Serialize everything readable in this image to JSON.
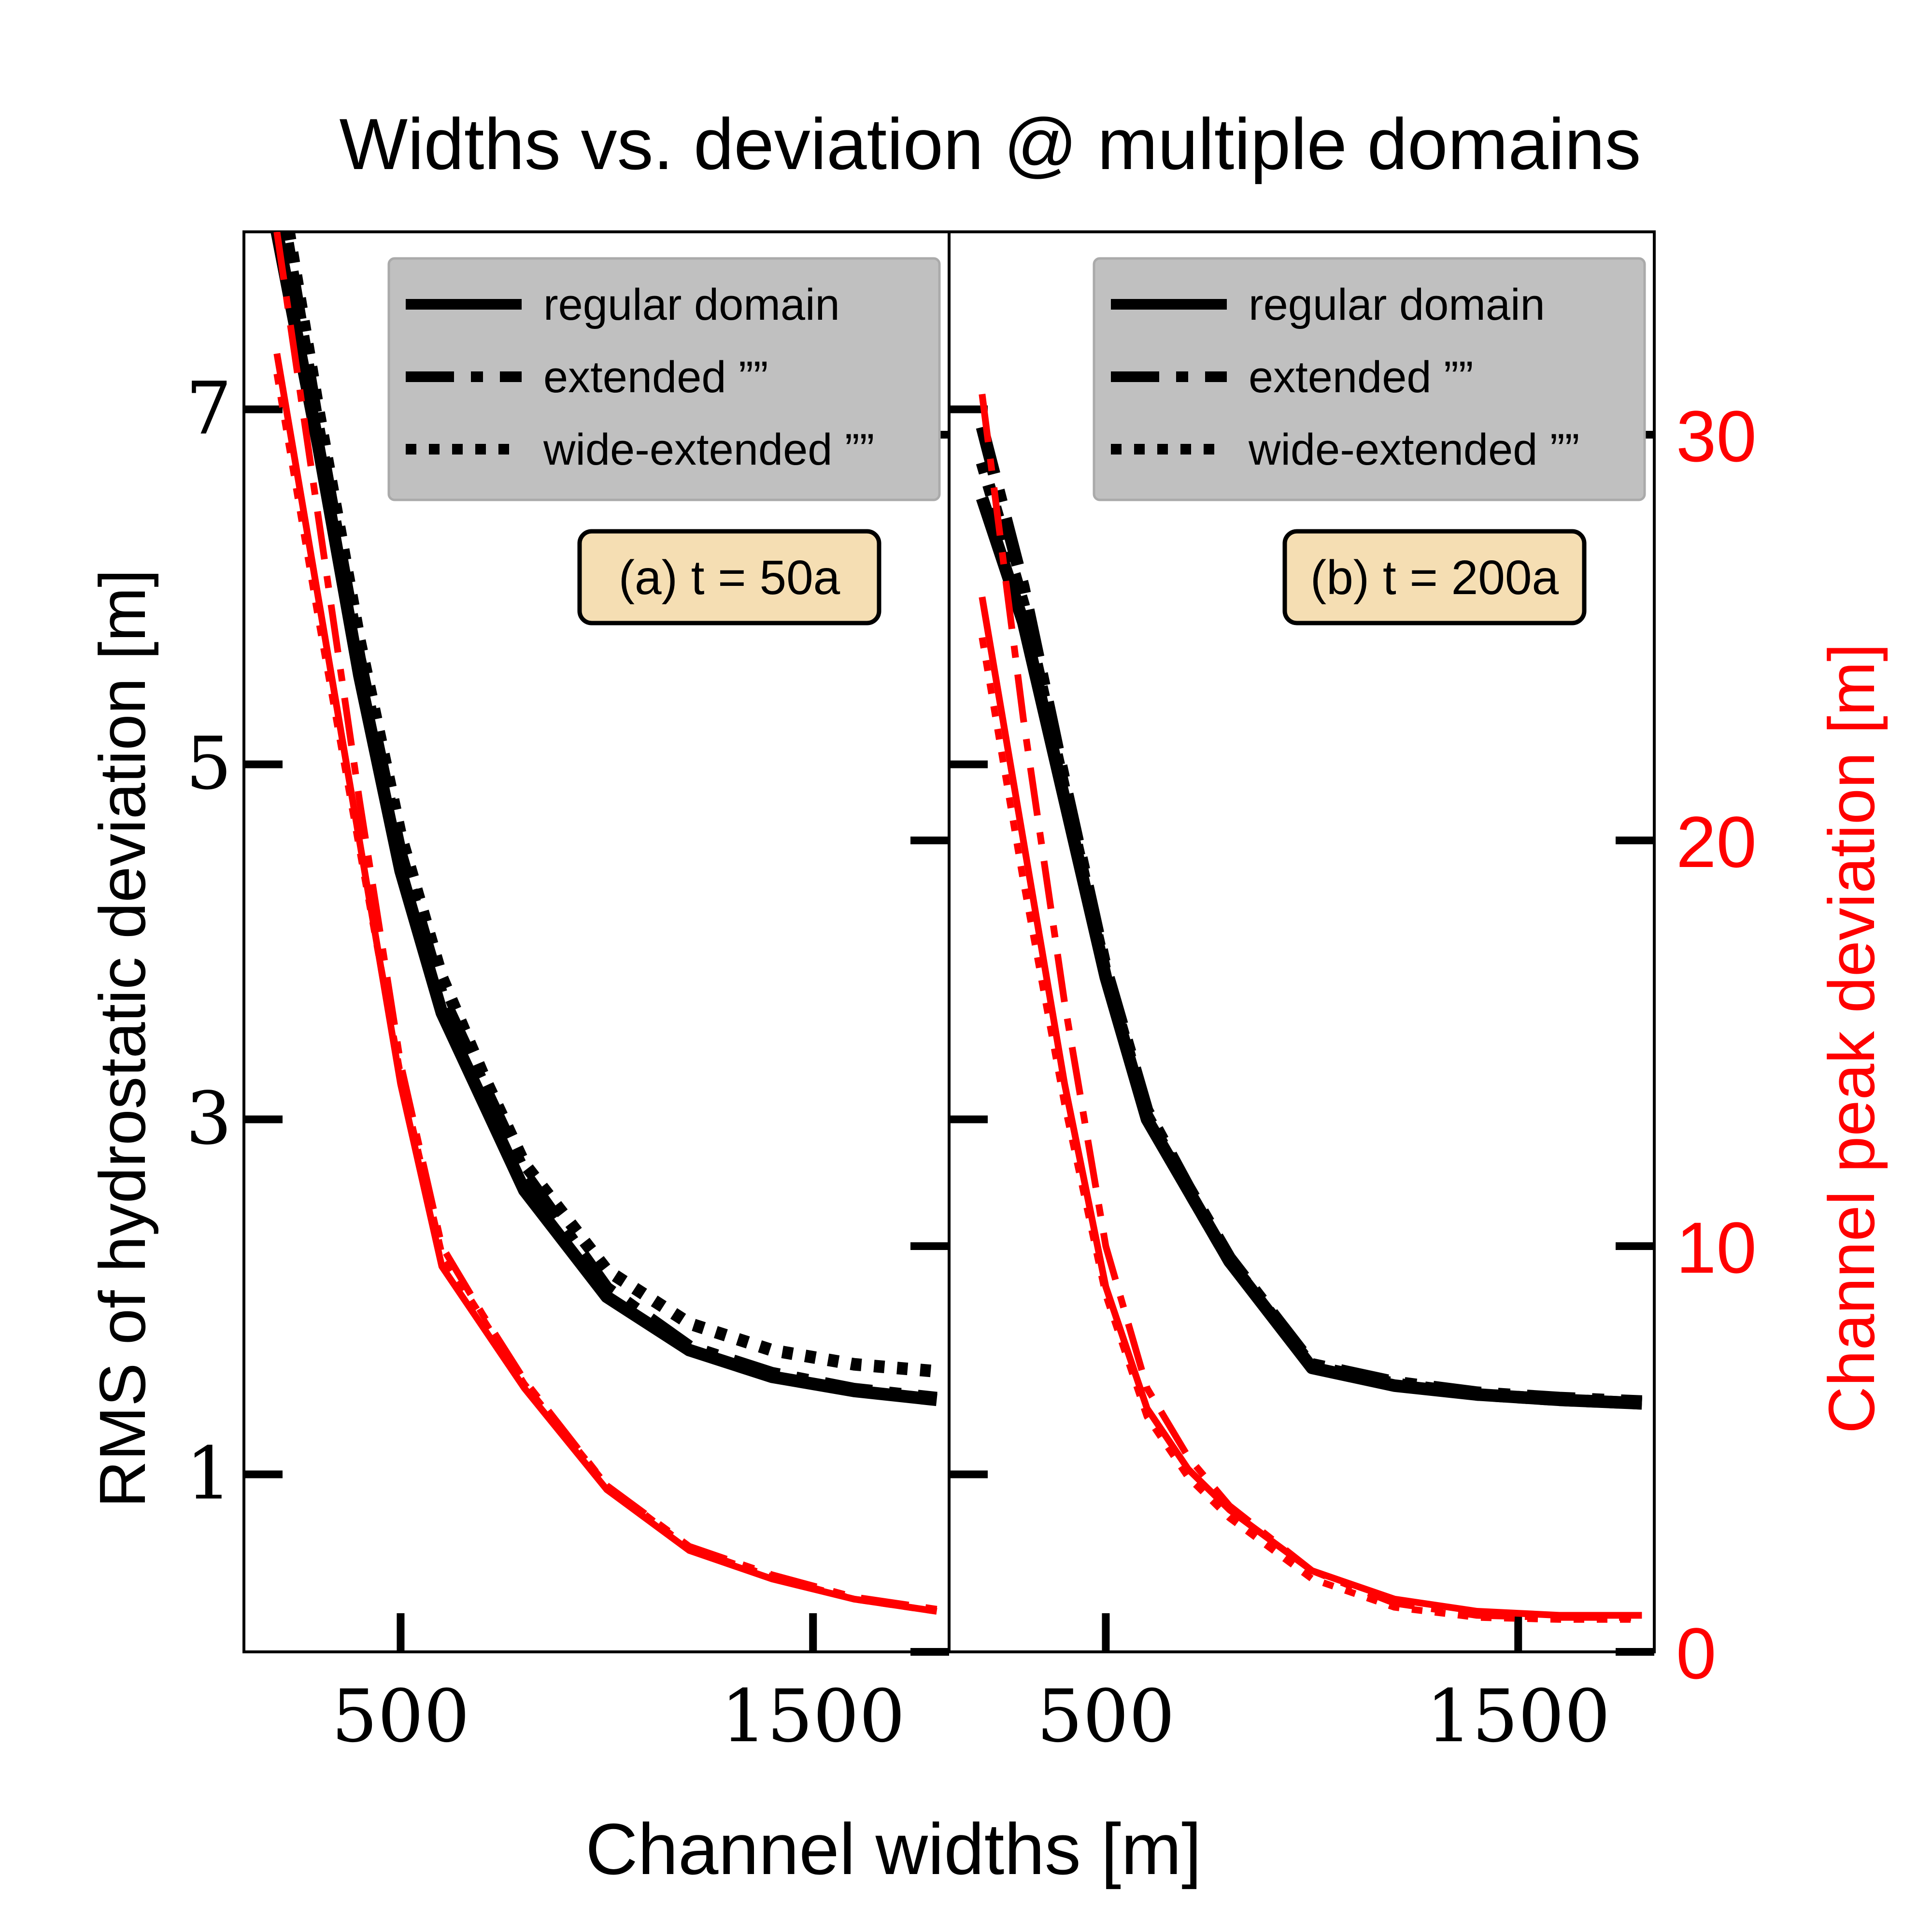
{
  "chart_data": {
    "type": "line",
    "title": "Widths vs. deviation @ multiple domains",
    "xlabel": "Channel widths [m]",
    "ylabel_left": "RMS of hydrostatic deviation [m]",
    "ylabel_right": "Channel peak deviation [m]",
    "colors": {
      "left_axis": "#000000",
      "right_axis": "#ff0000",
      "legend_bg": "#c0c0c0",
      "label_box_bg": "#f5deb3"
    },
    "xlim": [
      120,
      1830
    ],
    "ylim_left": [
      0,
      8.0
    ],
    "ylim_right": [
      0,
      35
    ],
    "xticks": [
      500,
      1500
    ],
    "xtick_labels": [
      "500",
      "1500"
    ],
    "yticks_left": [
      1,
      3,
      5,
      7
    ],
    "yticks_left_labels": [
      "1",
      "3",
      "5",
      "7"
    ],
    "yticks_right": [
      0,
      10,
      20,
      30
    ],
    "yticks_right_labels": [
      "0",
      "10",
      "20",
      "30"
    ],
    "legend": {
      "placement": "top-right",
      "entries": [
        {
          "label": "regular domain",
          "style": "solid"
        },
        {
          "label": "extended ””",
          "style": "dashdot"
        },
        {
          "label": "wide-extended ””",
          "style": "dotted"
        }
      ]
    },
    "panels": [
      {
        "label": "(a) t = 50a",
        "series": [
          {
            "axis": "left",
            "style": "solid",
            "x": [
              200,
              300,
              400,
              500,
              600,
              700,
              800,
              1000,
              1200,
              1400,
              1600,
              1800
            ],
            "y": [
              8.0,
              6.8,
              5.5,
              4.4,
              3.6,
              3.1,
              2.6,
              2.0,
              1.7,
              1.55,
              1.47,
              1.42
            ]
          },
          {
            "axis": "left",
            "style": "dashdot",
            "x": [
              200,
              300,
              400,
              500,
              600,
              700,
              800,
              1000,
              1200,
              1400,
              1600,
              1800
            ],
            "y": [
              8.3,
              6.9,
              5.6,
              4.5,
              3.7,
              3.2,
              2.7,
              2.05,
              1.72,
              1.57,
              1.48,
              1.43
            ]
          },
          {
            "axis": "left",
            "style": "dotted",
            "x": [
              200,
              300,
              400,
              500,
              600,
              700,
              800,
              1000,
              1200,
              1400,
              1600,
              1800
            ],
            "y": [
              8.4,
              7.0,
              5.7,
              4.6,
              3.8,
              3.25,
              2.75,
              2.15,
              1.85,
              1.7,
              1.62,
              1.58
            ]
          },
          {
            "axis": "right",
            "style": "solid",
            "x": [
              200,
              300,
              400,
              500,
              600,
              700,
              800,
              1000,
              1200,
              1400,
              1600,
              1800
            ],
            "y": [
              32,
              26,
              20,
              14,
              9.5,
              8,
              6.5,
              4,
              2.5,
              1.8,
              1.3,
              1.0
            ]
          },
          {
            "axis": "right",
            "style": "dashdot",
            "x": [
              200,
              300,
              400,
              500,
              600,
              700,
              800,
              1000,
              1200,
              1400,
              1600,
              1800
            ],
            "y": [
              35,
              28,
              21,
              14.5,
              10,
              8.3,
              6.7,
              4.1,
              2.6,
              1.9,
              1.35,
              1.05
            ]
          },
          {
            "axis": "right",
            "style": "dotted",
            "x": [
              200,
              300,
              400,
              500,
              600,
              700,
              800,
              1000,
              1200,
              1400,
              1600,
              1800
            ],
            "y": [
              31.5,
              25.5,
              19.8,
              14.2,
              9.8,
              8.2,
              6.6,
              4.1,
              2.55,
              1.85,
              1.3,
              1.0
            ]
          }
        ]
      },
      {
        "label": "(b) t = 200a",
        "series": [
          {
            "axis": "left",
            "style": "solid",
            "x": [
              200,
              300,
              400,
              500,
              600,
              700,
              800,
              1000,
              1200,
              1400,
              1600,
              1800
            ],
            "y": [
              6.5,
              5.8,
              4.8,
              3.8,
              3.0,
              2.6,
              2.2,
              1.6,
              1.5,
              1.45,
              1.42,
              1.4
            ]
          },
          {
            "axis": "left",
            "style": "dashdot",
            "x": [
              200,
              300,
              400,
              500,
              600,
              700,
              800,
              1000,
              1200,
              1400,
              1600,
              1800
            ],
            "y": [
              6.9,
              6.0,
              4.9,
              3.85,
              3.05,
              2.62,
              2.22,
              1.62,
              1.52,
              1.46,
              1.43,
              1.41
            ]
          },
          {
            "axis": "left",
            "style": "dotted",
            "x": [
              200,
              300,
              400,
              500,
              600,
              700,
              800,
              1000,
              1200,
              1400,
              1600,
              1800
            ],
            "y": [
              6.7,
              5.9,
              4.85,
              3.82,
              3.02,
              2.6,
              2.2,
              1.61,
              1.51,
              1.45,
              1.42,
              1.4
            ]
          },
          {
            "axis": "right",
            "style": "solid",
            "x": [
              200,
              300,
              400,
              500,
              600,
              700,
              800,
              1000,
              1200,
              1400,
              1600,
              1800
            ],
            "y": [
              26,
              20,
              14,
              9,
              6,
              4.5,
              3.5,
              2,
              1.3,
              1.0,
              0.9,
              0.9
            ]
          },
          {
            "axis": "right",
            "style": "dashdot",
            "x": [
              200,
              300,
              400,
              500,
              600,
              700,
              800,
              1000,
              1200,
              1400,
              1600,
              1800
            ],
            "y": [
              31,
              23,
              16,
              10,
              6.5,
              4.8,
              3.6,
              2.0,
              1.2,
              0.9,
              0.85,
              0.85
            ]
          },
          {
            "axis": "right",
            "style": "dotted",
            "x": [
              200,
              300,
              400,
              500,
              600,
              700,
              800,
              1000,
              1200,
              1400,
              1600,
              1800
            ],
            "y": [
              25,
              19,
              13.5,
              8.8,
              5.8,
              4.3,
              3.3,
              1.8,
              1.1,
              0.85,
              0.8,
              0.8
            ]
          }
        ]
      }
    ]
  }
}
